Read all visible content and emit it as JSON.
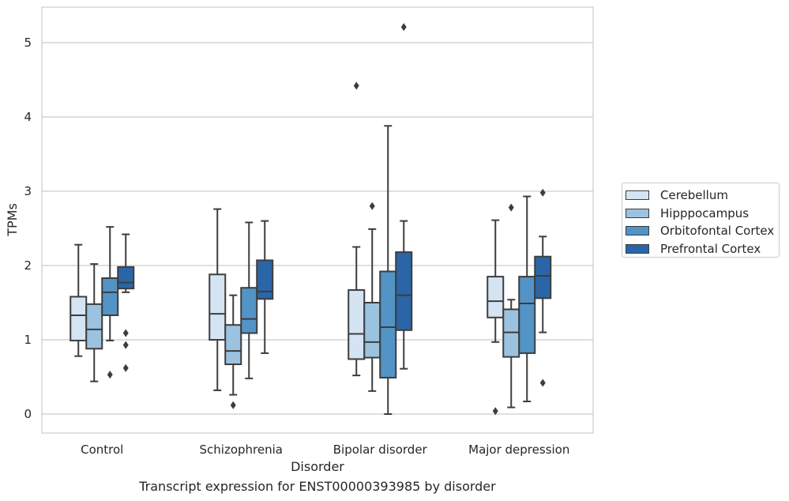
{
  "chart_data": {
    "type": "box",
    "title": "Transcript expression for ENST00000393985 by disorder",
    "xlabel": "Disorder",
    "ylabel": "TPMs",
    "ylim": [
      -0.25,
      5.5
    ],
    "yticks": [
      0,
      1,
      2,
      3,
      4,
      5
    ],
    "grid": true,
    "legend_position": "right",
    "categories": [
      "Control",
      "Schizophrenia",
      "Bipolar disorder",
      "Major depression"
    ],
    "series": [
      {
        "name": "Cerebellum",
        "color": "#d5e4f3",
        "boxes": [
          {
            "whislo": 0.78,
            "q1": 0.99,
            "med": 1.33,
            "q3": 1.58,
            "whishi": 2.28,
            "fliers": []
          },
          {
            "whislo": 0.32,
            "q1": 1.0,
            "med": 1.35,
            "q3": 1.88,
            "whishi": 2.76,
            "fliers": []
          },
          {
            "whislo": 0.52,
            "q1": 0.74,
            "med": 1.08,
            "q3": 1.67,
            "whishi": 2.25,
            "fliers": [
              4.42
            ]
          },
          {
            "whislo": 0.97,
            "q1": 1.3,
            "med": 1.52,
            "q3": 1.85,
            "whishi": 2.61,
            "fliers": [
              0.04
            ]
          }
        ]
      },
      {
        "name": "Hipppocampus",
        "color": "#9bc3df",
        "boxes": [
          {
            "whislo": 0.44,
            "q1": 0.88,
            "med": 1.14,
            "q3": 1.48,
            "whishi": 2.02,
            "fliers": []
          },
          {
            "whislo": 0.26,
            "q1": 0.67,
            "med": 0.85,
            "q3": 1.2,
            "whishi": 1.6,
            "fliers": [
              0.12
            ]
          },
          {
            "whislo": 0.31,
            "q1": 0.76,
            "med": 0.97,
            "q3": 1.5,
            "whishi": 2.49,
            "fliers": [
              2.8
            ]
          },
          {
            "whislo": 0.09,
            "q1": 0.77,
            "med": 1.1,
            "q3": 1.41,
            "whishi": 1.54,
            "fliers": [
              2.78
            ]
          }
        ]
      },
      {
        "name": "Orbitofontal Cortex",
        "color": "#5394c7",
        "boxes": [
          {
            "whislo": 0.99,
            "q1": 1.33,
            "med": 1.64,
            "q3": 1.83,
            "whishi": 2.52,
            "fliers": [
              0.53
            ]
          },
          {
            "whislo": 0.48,
            "q1": 1.09,
            "med": 1.28,
            "q3": 1.7,
            "whishi": 2.58,
            "fliers": []
          },
          {
            "whislo": 0.0,
            "q1": 0.49,
            "med": 1.17,
            "q3": 1.92,
            "whishi": 3.88,
            "fliers": []
          },
          {
            "whislo": 0.17,
            "q1": 0.82,
            "med": 1.49,
            "q3": 1.85,
            "whishi": 2.93,
            "fliers": []
          }
        ]
      },
      {
        "name": "Prefrontal Cortex",
        "color": "#2a66a7",
        "boxes": [
          {
            "whislo": 1.64,
            "q1": 1.69,
            "med": 1.77,
            "q3": 1.98,
            "whishi": 2.42,
            "fliers": [
              1.09,
              0.93,
              0.62
            ]
          },
          {
            "whislo": 0.82,
            "q1": 1.55,
            "med": 1.65,
            "q3": 2.07,
            "whishi": 2.6,
            "fliers": []
          },
          {
            "whislo": 0.61,
            "q1": 1.13,
            "med": 1.6,
            "q3": 2.18,
            "whishi": 2.6,
            "fliers": [
              5.21
            ]
          },
          {
            "whislo": 1.1,
            "q1": 1.56,
            "med": 1.86,
            "q3": 2.12,
            "whishi": 2.39,
            "fliers": [
              2.98,
              0.42
            ]
          }
        ]
      }
    ]
  }
}
